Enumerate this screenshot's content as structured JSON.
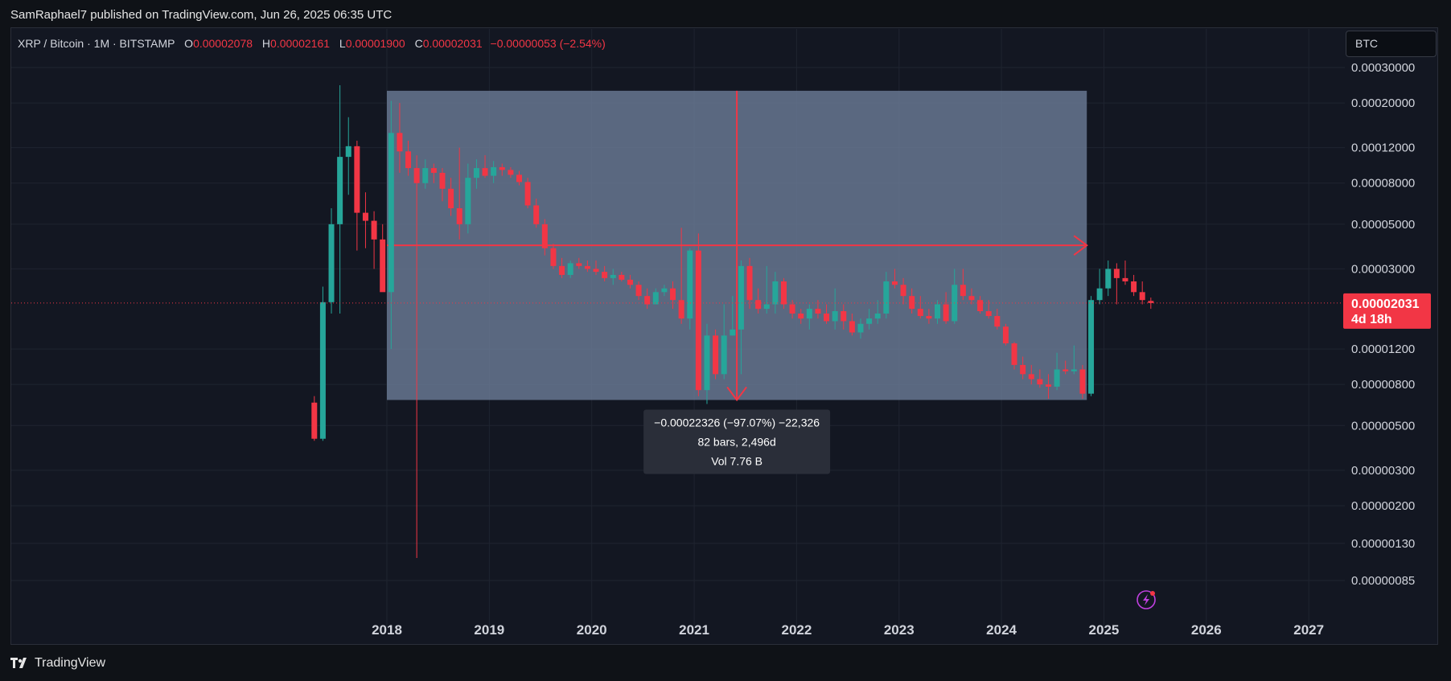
{
  "header": {
    "publisher_text": "SamRaphael7 published on TradingView.com, Jun 26, 2025 06:35 UTC"
  },
  "footer": {
    "brand": "TradingView"
  },
  "legend": {
    "symbol": "XRP / Bitcoin · 1M · BITSTAMP",
    "open_label": "O",
    "open": "0.00002078",
    "high_label": "H",
    "high": "0.00002161",
    "low_label": "L",
    "low": "0.00001900",
    "close_label": "C",
    "close": "0.00002031",
    "change": "−0.00000053 (−2.54%)"
  },
  "currency_button": "BTC",
  "price_tag": {
    "price": "0.00002031",
    "countdown": "4d 18h"
  },
  "measure": {
    "line1": "−0.00022326 (−97.07%) −22,326",
    "line2": "82 bars, 2,496d",
    "line3": "Vol 7.76 B"
  },
  "colors": {
    "up": "#26a69a",
    "down": "#f23645",
    "background": "#131722",
    "measure_fill": "#6e7f9b",
    "measure_line": "#f23645"
  },
  "icons": [
    "lightning-icon",
    "tradingview-logo-icon"
  ],
  "chart_data": {
    "type": "candlestick",
    "scale": "log",
    "symbol": "XRP / Bitcoin",
    "interval": "1M",
    "exchange": "BITSTAMP",
    "y_ticks": [
      "0.00030000",
      "0.00020000",
      "0.00012000",
      "0.00008000",
      "0.00005000",
      "0.00003000",
      "0.00001200",
      "0.00000800",
      "0.00000500",
      "0.00000300",
      "0.00000200",
      "0.00000130",
      "0.00000085"
    ],
    "x_ticks": [
      "2018",
      "2019",
      "2020",
      "2021",
      "2022",
      "2023",
      "2024",
      "2025",
      "2026",
      "2027"
    ],
    "last_price": 2.031e-05,
    "measurement": {
      "start": "2018-01",
      "end": "2024-10",
      "start_price": 0.00023,
      "end_price": 6.7e-06,
      "change": -0.00022326,
      "change_pct": -97.07,
      "bars": 82,
      "days": 2496,
      "volume": "7.76 B"
    },
    "candles": [
      {
        "t": "2017-04",
        "o": 6.5e-06,
        "h": 7e-06,
        "l": 4.2e-06,
        "c": 4.3e-06
      },
      {
        "t": "2017-05",
        "o": 4.3e-06,
        "h": 2.45e-05,
        "l": 4.2e-06,
        "c": 2.05e-05
      },
      {
        "t": "2017-06",
        "o": 2.05e-05,
        "h": 6e-05,
        "l": 1.8e-05,
        "c": 5e-05
      },
      {
        "t": "2017-07",
        "o": 5e-05,
        "h": 0.000245,
        "l": 1.8e-05,
        "c": 0.000108
      },
      {
        "t": "2017-08",
        "o": 0.000108,
        "h": 0.00017,
        "l": 7e-05,
        "c": 0.000122
      },
      {
        "t": "2017-09",
        "o": 0.000122,
        "h": 0.00013,
        "l": 3.7e-05,
        "c": 5.7e-05
      },
      {
        "t": "2017-10",
        "o": 5.7e-05,
        "h": 7.2e-05,
        "l": 3.8e-05,
        "c": 5.2e-05
      },
      {
        "t": "2017-11",
        "o": 5.2e-05,
        "h": 5.8e-05,
        "l": 3e-05,
        "c": 4.2e-05
      },
      {
        "t": "2017-12",
        "o": 4.2e-05,
        "h": 5e-05,
        "l": 2.4e-05,
        "c": 2.3e-05
      },
      {
        "t": "2018-01",
        "o": 2.3e-05,
        "h": 0.000205,
        "l": 1.2e-05,
        "c": 0.000142
      },
      {
        "t": "2018-02",
        "o": 0.000142,
        "h": 0.0002,
        "l": 9e-05,
        "c": 0.000115
      },
      {
        "t": "2018-03",
        "o": 0.000115,
        "h": 0.00013,
        "l": 8.7e-05,
        "c": 9.5e-05
      },
      {
        "t": "2018-04",
        "o": 9.5e-05,
        "h": 0.00011,
        "l": 1.1e-06,
        "c": 8e-05
      },
      {
        "t": "2018-05",
        "o": 8e-05,
        "h": 0.000105,
        "l": 7.5e-05,
        "c": 9.5e-05
      },
      {
        "t": "2018-06",
        "o": 9.5e-05,
        "h": 0.0001,
        "l": 8e-05,
        "c": 9e-05
      },
      {
        "t": "2018-07",
        "o": 9e-05,
        "h": 9.5e-05,
        "l": 6.5e-05,
        "c": 7.5e-05
      },
      {
        "t": "2018-08",
        "o": 7.5e-05,
        "h": 8.5e-05,
        "l": 5.5e-05,
        "c": 6e-05
      },
      {
        "t": "2018-09",
        "o": 6e-05,
        "h": 0.00012,
        "l": 4.2e-05,
        "c": 5e-05
      },
      {
        "t": "2018-10",
        "o": 5e-05,
        "h": 0.0001,
        "l": 4.5e-05,
        "c": 8.5e-05
      },
      {
        "t": "2018-11",
        "o": 8.5e-05,
        "h": 0.000105,
        "l": 7.5e-05,
        "c": 9.5e-05
      },
      {
        "t": "2018-12",
        "o": 9.5e-05,
        "h": 0.00011,
        "l": 8.5e-05,
        "c": 8.7e-05
      },
      {
        "t": "2019-01",
        "o": 8.7e-05,
        "h": 0.000103,
        "l": 8e-05,
        "c": 9.6e-05
      },
      {
        "t": "2019-02",
        "o": 9.6e-05,
        "h": 0.0001,
        "l": 8.7e-05,
        "c": 9.3e-05
      },
      {
        "t": "2019-03",
        "o": 9.3e-05,
        "h": 9.6e-05,
        "l": 8.5e-05,
        "c": 8.8e-05
      },
      {
        "t": "2019-04",
        "o": 8.8e-05,
        "h": 9.2e-05,
        "l": 7.8e-05,
        "c": 8.1e-05
      },
      {
        "t": "2019-05",
        "o": 8.1e-05,
        "h": 8.5e-05,
        "l": 6e-05,
        "c": 6.2e-05
      },
      {
        "t": "2019-06",
        "o": 6.2e-05,
        "h": 6.7e-05,
        "l": 4.8e-05,
        "c": 5e-05
      },
      {
        "t": "2019-07",
        "o": 5e-05,
        "h": 5.3e-05,
        "l": 3.5e-05,
        "c": 3.8e-05
      },
      {
        "t": "2019-08",
        "o": 3.8e-05,
        "h": 4e-05,
        "l": 3e-05,
        "c": 3.1e-05
      },
      {
        "t": "2019-09",
        "o": 3.1e-05,
        "h": 3.4e-05,
        "l": 2.7e-05,
        "c": 2.8e-05
      },
      {
        "t": "2019-10",
        "o": 2.8e-05,
        "h": 3.3e-05,
        "l": 2.7e-05,
        "c": 3.2e-05
      },
      {
        "t": "2019-11",
        "o": 3.2e-05,
        "h": 3.4e-05,
        "l": 3e-05,
        "c": 3.1e-05
      },
      {
        "t": "2019-12",
        "o": 3.1e-05,
        "h": 3.3e-05,
        "l": 2.9e-05,
        "c": 3e-05
      },
      {
        "t": "2020-01",
        "o": 3e-05,
        "h": 3.3e-05,
        "l": 2.8e-05,
        "c": 2.9e-05
      },
      {
        "t": "2020-02",
        "o": 2.9e-05,
        "h": 3.1e-05,
        "l": 2.6e-05,
        "c": 2.7e-05
      },
      {
        "t": "2020-03",
        "o": 2.7e-05,
        "h": 3e-05,
        "l": 2.5e-05,
        "c": 2.8e-05
      },
      {
        "t": "2020-04",
        "o": 2.8e-05,
        "h": 2.9e-05,
        "l": 2.6e-05,
        "c": 2.65e-05
      },
      {
        "t": "2020-05",
        "o": 2.65e-05,
        "h": 2.8e-05,
        "l": 2.4e-05,
        "c": 2.5e-05
      },
      {
        "t": "2020-06",
        "o": 2.5e-05,
        "h": 2.6e-05,
        "l": 2.1e-05,
        "c": 2.2e-05
      },
      {
        "t": "2020-07",
        "o": 2.2e-05,
        "h": 2.4e-05,
        "l": 1.9e-05,
        "c": 2e-05
      },
      {
        "t": "2020-08",
        "o": 2e-05,
        "h": 2.4e-05,
        "l": 2e-05,
        "c": 2.3e-05
      },
      {
        "t": "2020-09",
        "o": 2.3e-05,
        "h": 2.5e-05,
        "l": 2.2e-05,
        "c": 2.4e-05
      },
      {
        "t": "2020-10",
        "o": 2.4e-05,
        "h": 2.6e-05,
        "l": 1.9e-05,
        "c": 2.1e-05
      },
      {
        "t": "2020-11",
        "o": 2.1e-05,
        "h": 4.8e-05,
        "l": 1.6e-05,
        "c": 1.7e-05
      },
      {
        "t": "2020-12",
        "o": 1.7e-05,
        "h": 3.8e-05,
        "l": 1.5e-05,
        "c": 3.7e-05
      },
      {
        "t": "2021-01",
        "o": 3.7e-05,
        "h": 4.5e-05,
        "l": 7e-06,
        "c": 7.5e-06
      },
      {
        "t": "2021-02",
        "o": 7.5e-06,
        "h": 1.6e-05,
        "l": 6.4e-06,
        "c": 1.4e-05
      },
      {
        "t": "2021-03",
        "o": 1.4e-05,
        "h": 1.5e-05,
        "l": 8.5e-06,
        "c": 9e-06
      },
      {
        "t": "2021-04",
        "o": 9e-06,
        "h": 2e-05,
        "l": 8.5e-06,
        "c": 1.4e-05
      },
      {
        "t": "2021-05",
        "o": 1.4e-05,
        "h": 2.2e-05,
        "l": 1.4e-05,
        "c": 1.5e-05
      },
      {
        "t": "2021-06",
        "o": 1.5e-05,
        "h": 3.3e-05,
        "l": 9e-06,
        "c": 3.1e-05
      },
      {
        "t": "2021-07",
        "o": 3.1e-05,
        "h": 3.4e-05,
        "l": 1.9e-05,
        "c": 2.1e-05
      },
      {
        "t": "2021-08",
        "o": 2.1e-05,
        "h": 2.4e-05,
        "l": 1.8e-05,
        "c": 1.9e-05
      },
      {
        "t": "2021-09",
        "o": 1.9e-05,
        "h": 3.1e-05,
        "l": 1.8e-05,
        "c": 2e-05
      },
      {
        "t": "2021-10",
        "o": 2e-05,
        "h": 2.9e-05,
        "l": 1.8e-05,
        "c": 2.6e-05
      },
      {
        "t": "2021-11",
        "o": 2.6e-05,
        "h": 2.7e-05,
        "l": 1.9e-05,
        "c": 2e-05
      },
      {
        "t": "2021-12",
        "o": 2e-05,
        "h": 2.1e-05,
        "l": 1.7e-05,
        "c": 1.8e-05
      },
      {
        "t": "2022-01",
        "o": 1.8e-05,
        "h": 1.9e-05,
        "l": 1.6e-05,
        "c": 1.7e-05
      },
      {
        "t": "2022-02",
        "o": 1.7e-05,
        "h": 2e-05,
        "l": 1.5e-05,
        "c": 1.9e-05
      },
      {
        "t": "2022-03",
        "o": 1.9e-05,
        "h": 2.1e-05,
        "l": 1.7e-05,
        "c": 1.8e-05
      },
      {
        "t": "2022-04",
        "o": 1.8e-05,
        "h": 2e-05,
        "l": 1.6e-05,
        "c": 1.65e-05
      },
      {
        "t": "2022-05",
        "o": 1.65e-05,
        "h": 2.4e-05,
        "l": 1.5e-05,
        "c": 1.85e-05
      },
      {
        "t": "2022-06",
        "o": 1.85e-05,
        "h": 2e-05,
        "l": 1.5e-05,
        "c": 1.65e-05
      },
      {
        "t": "2022-07",
        "o": 1.65e-05,
        "h": 1.8e-05,
        "l": 1.4e-05,
        "c": 1.45e-05
      },
      {
        "t": "2022-08",
        "o": 1.45e-05,
        "h": 1.7e-05,
        "l": 1.35e-05,
        "c": 1.6e-05
      },
      {
        "t": "2022-09",
        "o": 1.6e-05,
        "h": 1.9e-05,
        "l": 1.5e-05,
        "c": 1.7e-05
      },
      {
        "t": "2022-10",
        "o": 1.7e-05,
        "h": 2.1e-05,
        "l": 1.6e-05,
        "c": 1.8e-05
      },
      {
        "t": "2022-11",
        "o": 1.8e-05,
        "h": 2.9e-05,
        "l": 1.7e-05,
        "c": 2.6e-05
      },
      {
        "t": "2022-12",
        "o": 2.6e-05,
        "h": 3e-05,
        "l": 2.4e-05,
        "c": 2.5e-05
      },
      {
        "t": "2023-01",
        "o": 2.5e-05,
        "h": 2.7e-05,
        "l": 2e-05,
        "c": 2.2e-05
      },
      {
        "t": "2023-02",
        "o": 2.2e-05,
        "h": 2.4e-05,
        "l": 1.8e-05,
        "c": 1.9e-05
      },
      {
        "t": "2023-03",
        "o": 1.9e-05,
        "h": 2.2e-05,
        "l": 1.7e-05,
        "c": 1.75e-05
      },
      {
        "t": "2023-04",
        "o": 1.75e-05,
        "h": 1.9e-05,
        "l": 1.6e-05,
        "c": 1.7e-05
      },
      {
        "t": "2023-05",
        "o": 1.7e-05,
        "h": 2.1e-05,
        "l": 1.6e-05,
        "c": 2e-05
      },
      {
        "t": "2023-06",
        "o": 2e-05,
        "h": 2.3e-05,
        "l": 1.6e-05,
        "c": 1.65e-05
      },
      {
        "t": "2023-07",
        "o": 1.65e-05,
        "h": 3e-05,
        "l": 1.6e-05,
        "c": 2.5e-05
      },
      {
        "t": "2023-08",
        "o": 2.5e-05,
        "h": 3e-05,
        "l": 2.1e-05,
        "c": 2.2e-05
      },
      {
        "t": "2023-09",
        "o": 2.2e-05,
        "h": 2.4e-05,
        "l": 2e-05,
        "c": 2.1e-05
      },
      {
        "t": "2023-10",
        "o": 2.1e-05,
        "h": 2.2e-05,
        "l": 1.8e-05,
        "c": 1.85e-05
      },
      {
        "t": "2023-11",
        "o": 1.85e-05,
        "h": 2.1e-05,
        "l": 1.7e-05,
        "c": 1.75e-05
      },
      {
        "t": "2023-12",
        "o": 1.75e-05,
        "h": 1.9e-05,
        "l": 1.5e-05,
        "c": 1.55e-05
      },
      {
        "t": "2024-01",
        "o": 1.55e-05,
        "h": 1.6e-05,
        "l": 1.25e-05,
        "c": 1.28e-05
      },
      {
        "t": "2024-02",
        "o": 1.28e-05,
        "h": 1.3e-05,
        "l": 9.5e-06,
        "c": 1e-05
      },
      {
        "t": "2024-03",
        "o": 1e-05,
        "h": 1.1e-05,
        "l": 8.5e-06,
        "c": 9e-06
      },
      {
        "t": "2024-04",
        "o": 9e-06,
        "h": 1e-05,
        "l": 8e-06,
        "c": 8.5e-06
      },
      {
        "t": "2024-05",
        "o": 8.5e-06,
        "h": 9.5e-06,
        "l": 7.7e-06,
        "c": 8e-06
      },
      {
        "t": "2024-06",
        "o": 8e-06,
        "h": 9e-06,
        "l": 6.8e-06,
        "c": 7.8e-06
      },
      {
        "t": "2024-07",
        "o": 7.8e-06,
        "h": 1.15e-05,
        "l": 7.5e-06,
        "c": 9.5e-06
      },
      {
        "t": "2024-08",
        "o": 9.5e-06,
        "h": 1.05e-05,
        "l": 9e-06,
        "c": 9.3e-06
      },
      {
        "t": "2024-09",
        "o": 9.3e-06,
        "h": 1.25e-05,
        "l": 9e-06,
        "c": 9.5e-06
      },
      {
        "t": "2024-10",
        "o": 9.5e-06,
        "h": 1e-05,
        "l": 6.8e-06,
        "c": 7.2e-06
      },
      {
        "t": "2024-11",
        "o": 7.2e-06,
        "h": 2.2e-05,
        "l": 7e-06,
        "c": 2.1e-05
      },
      {
        "t": "2024-12",
        "o": 2.1e-05,
        "h": 3e-05,
        "l": 2e-05,
        "c": 2.4e-05
      },
      {
        "t": "2025-01",
        "o": 2.4e-05,
        "h": 3.3e-05,
        "l": 2.2e-05,
        "c": 3e-05
      },
      {
        "t": "2025-02",
        "o": 3e-05,
        "h": 3.2e-05,
        "l": 2e-05,
        "c": 2.7e-05
      },
      {
        "t": "2025-03",
        "o": 2.7e-05,
        "h": 3.3e-05,
        "l": 2.5e-05,
        "c": 2.6e-05
      },
      {
        "t": "2025-04",
        "o": 2.6e-05,
        "h": 2.8e-05,
        "l": 2.2e-05,
        "c": 2.3e-05
      },
      {
        "t": "2025-05",
        "o": 2.3e-05,
        "h": 2.6e-05,
        "l": 2e-05,
        "c": 2.1e-05
      },
      {
        "t": "2025-06",
        "o": 2.08e-05,
        "h": 2.16e-05,
        "l": 1.9e-05,
        "c": 2.03e-05
      }
    ]
  }
}
